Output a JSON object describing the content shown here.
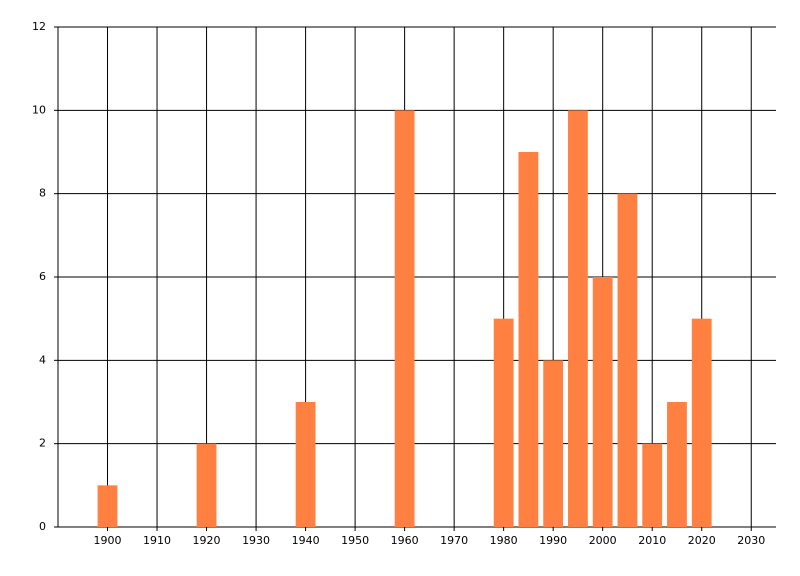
{
  "chart_data": {
    "type": "bar",
    "x": [
      1900,
      1920,
      1940,
      1960,
      1980,
      1985,
      1990,
      1995,
      2000,
      2005,
      2010,
      2015,
      2020
    ],
    "values": [
      1,
      2,
      3,
      10,
      5,
      9,
      4,
      10,
      6,
      8,
      2,
      3,
      5
    ],
    "color": "#ff8040",
    "xlim": [
      1890,
      2035
    ],
    "xticks": [
      1900,
      1910,
      1920,
      1930,
      1940,
      1950,
      1960,
      1970,
      1980,
      1990,
      2000,
      2010,
      2020,
      2030
    ],
    "ylim": [
      0,
      12
    ],
    "yticks": [
      0,
      2,
      4,
      6,
      8,
      10,
      12
    ],
    "grid": true
  }
}
